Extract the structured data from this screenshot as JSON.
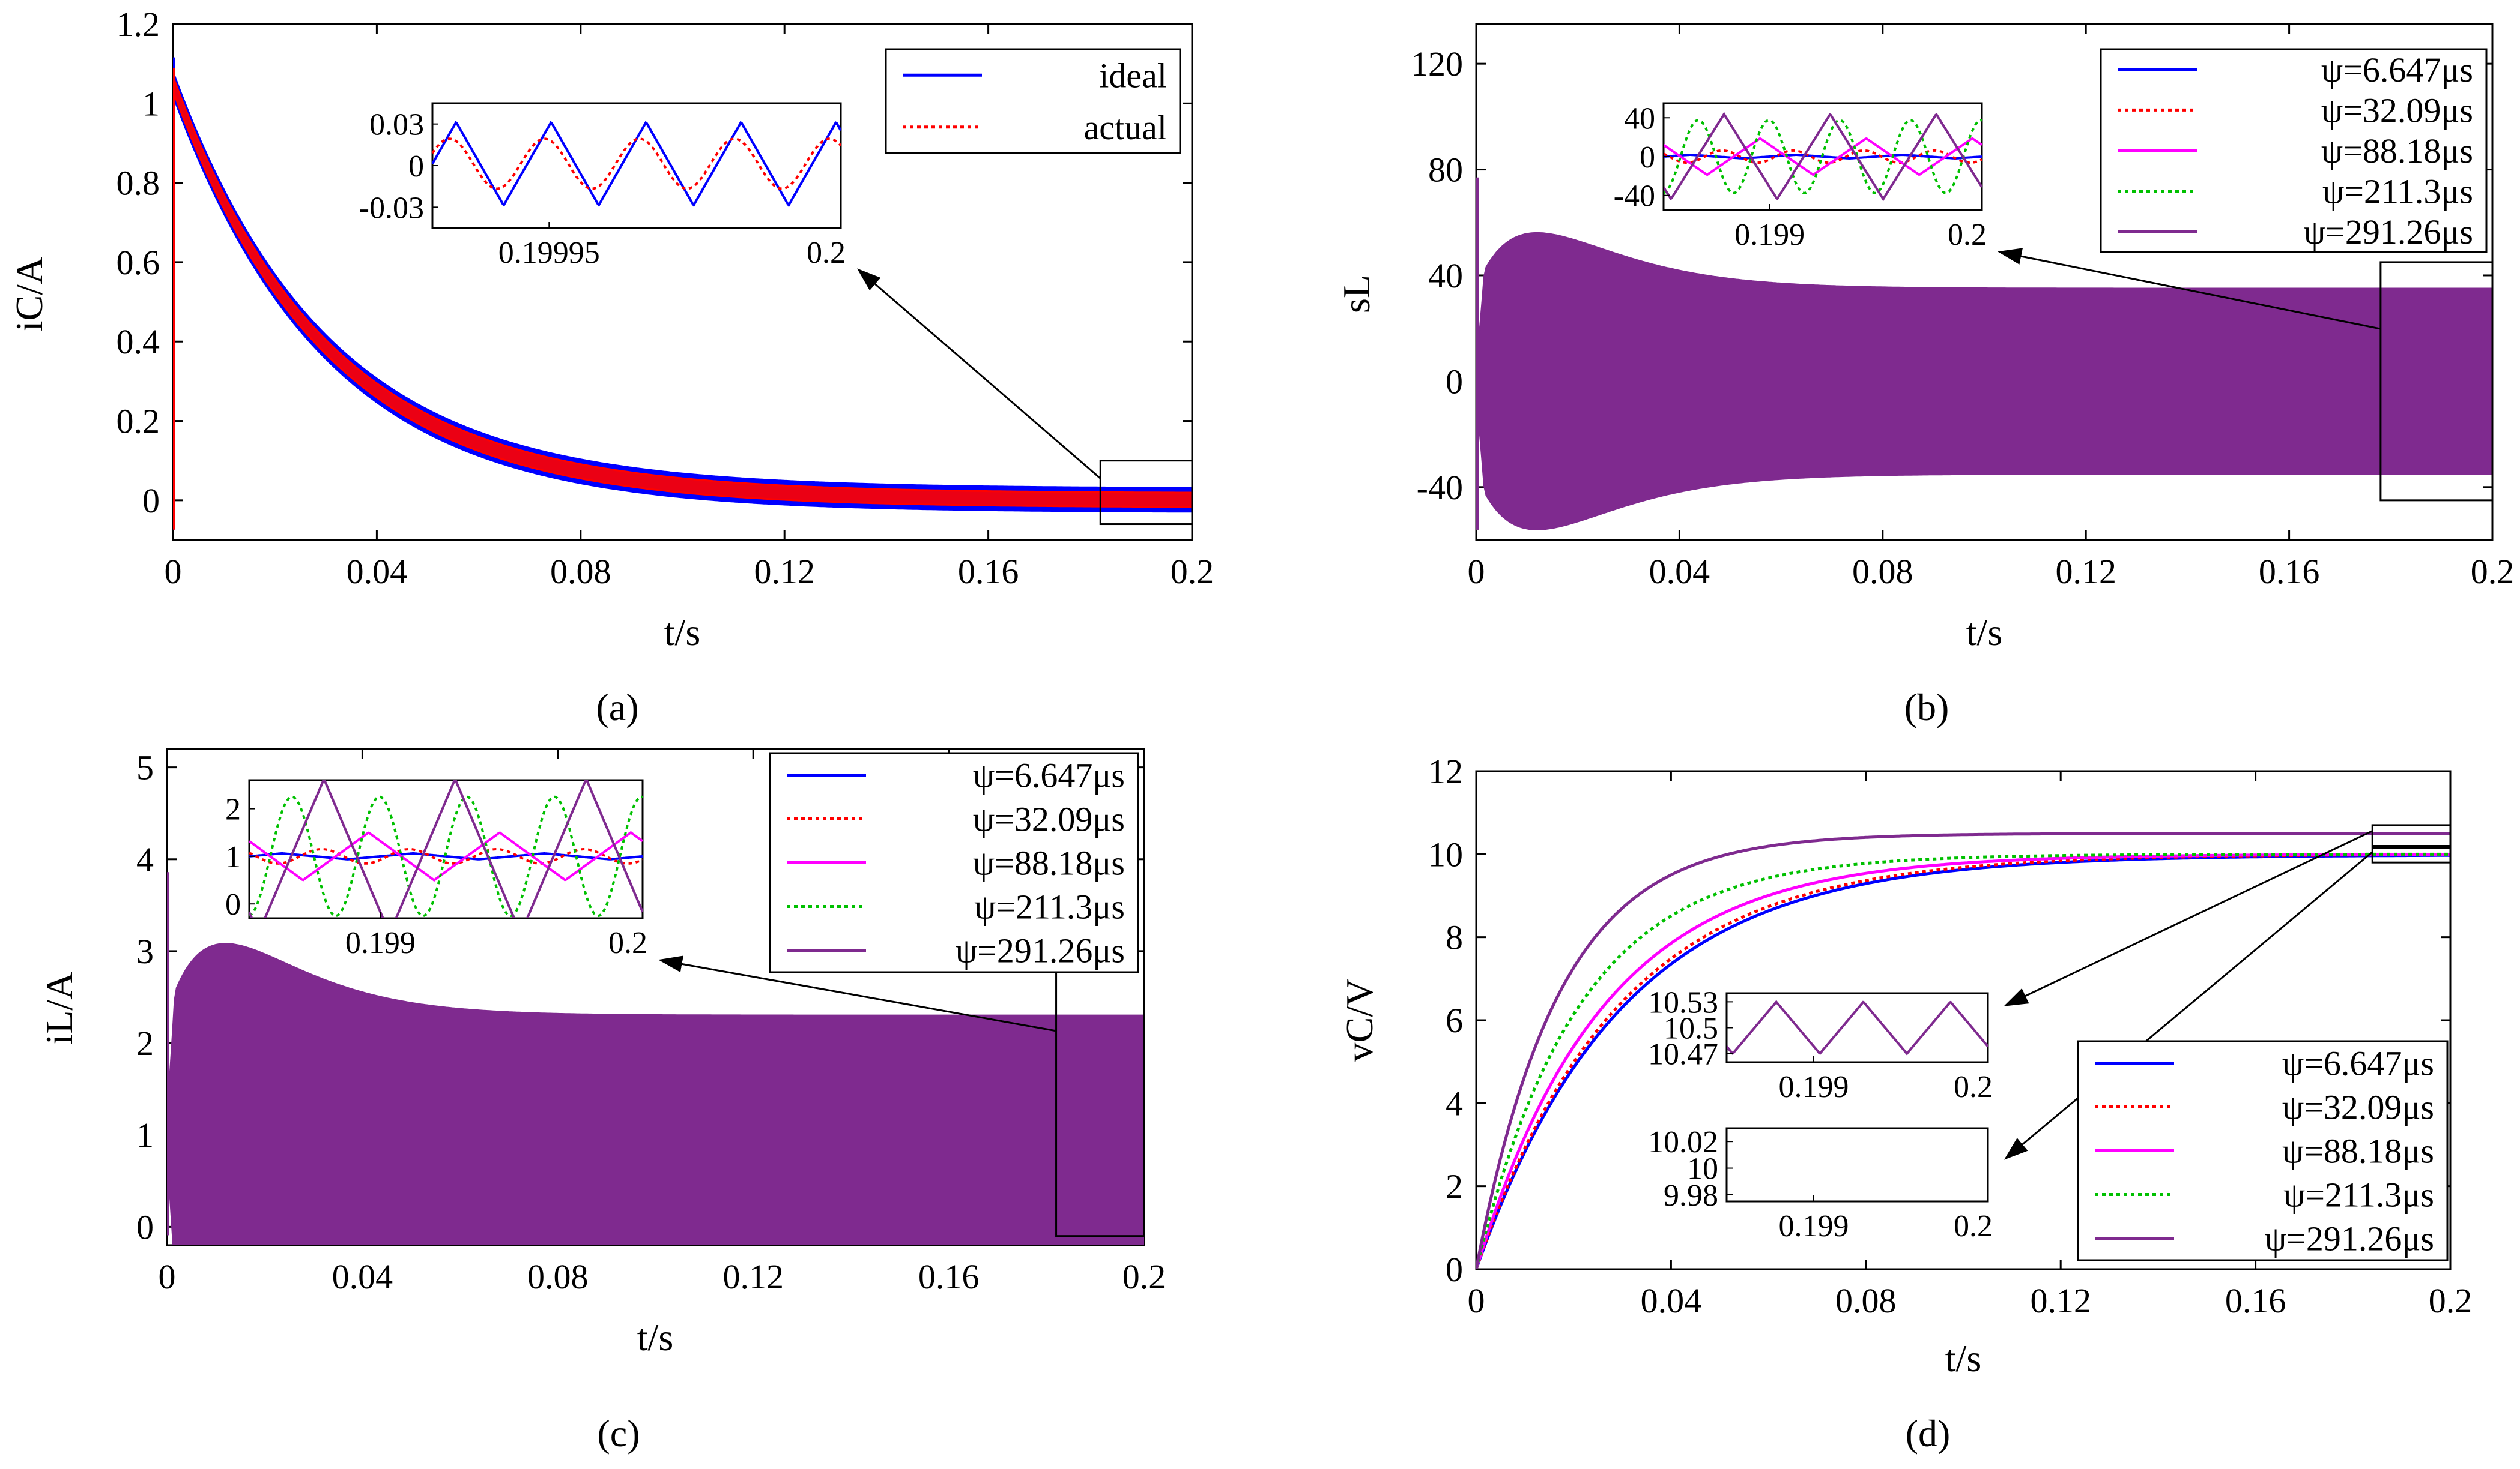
{
  "chart_data": [
    {
      "id": "a",
      "type": "line",
      "caption": "(a)",
      "xlabel": "t/s",
      "ylabel": "iC/A",
      "xlim": [
        0,
        0.2
      ],
      "ylim": [
        -0.1,
        1.2
      ],
      "xticks": [
        0,
        0.04,
        0.08,
        0.12,
        0.16,
        0.2
      ],
      "xtick_labels": [
        "0",
        "0.04",
        "0.08",
        "0.12",
        "0.16",
        "0.2"
      ],
      "yticks": [
        0,
        0.2,
        0.4,
        0.6,
        0.8,
        1,
        1.2
      ],
      "ytick_labels": [
        "0",
        "0.2",
        "0.4",
        "0.6",
        "0.8",
        "1",
        "1.2"
      ],
      "legend_position": "top-right",
      "series": [
        {
          "name": "ideal",
          "color": "#0000ff",
          "style": "solid",
          "model": "decay",
          "start": 1.05,
          "final": 0.0,
          "tau": 0.03,
          "ripple": 0.03,
          "ripple_shape": "triangle"
        },
        {
          "name": "actual",
          "color": "#ff0000",
          "style": "dotted",
          "model": "decay",
          "start": 1.05,
          "final": 0.0,
          "tau": 0.03,
          "ripple": 0.018,
          "ripple_shape": "sine"
        }
      ],
      "inset": {
        "xlim": [
          0.19993,
          0.2
        ],
        "ylim": [
          -0.045,
          0.045
        ],
        "xticks": [
          0.19995,
          0.2
        ],
        "xtick_labels": [
          "0.19995",
          "0.2"
        ],
        "yticks": [
          0.03,
          0,
          -0.03
        ],
        "ytick_labels": [
          "0.03",
          "0",
          "-0.03"
        ],
        "zoom_xlim": [
          0.182,
          0.2
        ],
        "zoom_ylim": [
          -0.06,
          0.1
        ]
      }
    },
    {
      "id": "b",
      "type": "line",
      "caption": "(b)",
      "xlabel": "t/s",
      "ylabel": "sL",
      "xlim": [
        0,
        0.2
      ],
      "ylim": [
        -60,
        135
      ],
      "xticks": [
        0,
        0.04,
        0.08,
        0.12,
        0.16,
        0.2
      ],
      "xtick_labels": [
        "0",
        "0.04",
        "0.08",
        "0.12",
        "0.16",
        "0.2"
      ],
      "yticks": [
        -40,
        0,
        40,
        80,
        120
      ],
      "ytick_labels": [
        "-40",
        "0",
        "40",
        "80",
        "120"
      ],
      "legend_position": "top-right",
      "series": [
        {
          "name": "ψ=6.647μs",
          "color": "#0000ff",
          "style": "solid",
          "model": "band",
          "center": 0,
          "ripple": 1.5
        },
        {
          "name": "ψ=32.09μs",
          "color": "#ff0000",
          "style": "dotted",
          "model": "band",
          "center": 0,
          "ripple": 5
        },
        {
          "name": "ψ=88.18μs",
          "color": "#ff00ff",
          "style": "solid",
          "model": "band",
          "center": 0,
          "ripple": 15
        },
        {
          "name": "ψ=211.3μs",
          "color": "#00c000",
          "style": "dotted",
          "model": "band",
          "center": 0,
          "ripple": 30
        },
        {
          "name": "ψ=291.26μs",
          "color": "#7f2a8f",
          "style": "solid",
          "model": "band",
          "center": 0,
          "ripple": 35
        }
      ],
      "inset": {
        "xlim": [
          0.1985,
          0.2
        ],
        "ylim": [
          -55,
          55
        ],
        "xticks": [
          0.199,
          0.2
        ],
        "xtick_labels": [
          "0.199",
          "0.2"
        ],
        "yticks": [
          40,
          0,
          -40
        ],
        "ytick_labels": [
          "40",
          "0",
          "-40"
        ],
        "zoom_xlim": [
          0.178,
          0.2
        ],
        "zoom_ylim": [
          -45,
          45
        ]
      }
    },
    {
      "id": "c",
      "type": "line",
      "caption": "(c)",
      "xlabel": "t/s",
      "ylabel": "iL/A",
      "xlim": [
        0,
        0.2
      ],
      "ylim": [
        -0.2,
        5.2
      ],
      "xticks": [
        0,
        0.04,
        0.08,
        0.12,
        0.16,
        0.2
      ],
      "xtick_labels": [
        "0",
        "0.04",
        "0.08",
        "0.12",
        "0.16",
        "0.2"
      ],
      "yticks": [
        0,
        1,
        2,
        3,
        4,
        5
      ],
      "ytick_labels": [
        "0",
        "1",
        "2",
        "3",
        "4",
        "5"
      ],
      "legend_position": "top-right",
      "series": [
        {
          "name": "ψ=6.647μs",
          "color": "#0000ff",
          "style": "solid",
          "model": "band",
          "center": 1,
          "ripple": 0.05
        },
        {
          "name": "ψ=32.09μs",
          "color": "#ff0000",
          "style": "dotted",
          "model": "band",
          "center": 1,
          "ripple": 0.12
        },
        {
          "name": "ψ=88.18μs",
          "color": "#ff00ff",
          "style": "solid",
          "model": "band",
          "center": 1,
          "ripple": 0.4
        },
        {
          "name": "ψ=211.3μs",
          "color": "#00c000",
          "style": "dotted",
          "model": "band",
          "center": 1,
          "ripple": 1.0
        },
        {
          "name": "ψ=291.26μs",
          "color": "#7f2a8f",
          "style": "solid",
          "model": "band",
          "center": 1,
          "ripple": 1.3
        }
      ],
      "inset": {
        "xlim": [
          0.1985,
          0.2
        ],
        "ylim": [
          -0.3,
          2.6
        ],
        "xticks": [
          0.199,
          0.2
        ],
        "xtick_labels": [
          "0.199",
          "0.2"
        ],
        "yticks": [
          2,
          1,
          0
        ],
        "ytick_labels": [
          "2",
          "1",
          "0"
        ],
        "zoom_xlim": [
          0.182,
          0.2
        ],
        "zoom_ylim": [
          -0.1,
          3.0
        ]
      }
    },
    {
      "id": "d",
      "type": "line",
      "caption": "(d)",
      "xlabel": "t/s",
      "ylabel": "vC/V",
      "xlim": [
        0,
        0.2
      ],
      "ylim": [
        0,
        12
      ],
      "xticks": [
        0,
        0.04,
        0.08,
        0.12,
        0.16,
        0.2
      ],
      "xtick_labels": [
        "0",
        "0.04",
        "0.08",
        "0.12",
        "0.16",
        "0.2"
      ],
      "yticks": [
        0,
        2,
        4,
        6,
        8,
        10,
        12
      ],
      "ytick_labels": [
        "0",
        "2",
        "4",
        "6",
        "8",
        "10",
        "12"
      ],
      "legend_position": "bottom-right",
      "series": [
        {
          "name": "ψ=6.647μs",
          "color": "#0000ff",
          "style": "solid",
          "model": "rise",
          "final": 9.985,
          "tau": 0.03,
          "ripple": 0.0
        },
        {
          "name": "ψ=32.09μs",
          "color": "#ff0000",
          "style": "dotted",
          "model": "rise",
          "final": 10.0,
          "tau": 0.029,
          "ripple": 0.002
        },
        {
          "name": "ψ=88.18μs",
          "color": "#ff00ff",
          "style": "solid",
          "model": "rise",
          "final": 10.0,
          "tau": 0.026,
          "ripple": 0.003
        },
        {
          "name": "ψ=211.3μs",
          "color": "#00c000",
          "style": "dotted",
          "model": "rise",
          "final": 10.0,
          "tau": 0.021,
          "ripple": 0.02
        },
        {
          "name": "ψ=291.26μs",
          "color": "#7f2a8f",
          "style": "solid",
          "model": "rise",
          "final": 10.5,
          "tau": 0.017,
          "ripple": 0.03
        }
      ],
      "insets": [
        {
          "xlim": [
            0.1985,
            0.2
          ],
          "ylim": [
            10.46,
            10.54
          ],
          "xticks": [
            0.199,
            0.2
          ],
          "xtick_labels": [
            "0.199",
            "0.2"
          ],
          "yticks": [
            10.53,
            10.5,
            10.47
          ],
          "ytick_labels": [
            "10.53",
            "10.5",
            "10.47"
          ],
          "series_indices": [
            4
          ],
          "zoom_xlim": [
            0.184,
            0.2
          ],
          "zoom_ylim": [
            10.2,
            10.7
          ]
        },
        {
          "xlim": [
            0.1985,
            0.2
          ],
          "ylim": [
            9.975,
            10.03
          ],
          "xticks": [
            0.199,
            0.2
          ],
          "xtick_labels": [
            "0.199",
            "0.2"
          ],
          "yticks": [
            10.02,
            10,
            9.98
          ],
          "ytick_labels": [
            "10.02",
            "10",
            "9.98"
          ],
          "series_indices": [
            0,
            1,
            2,
            3
          ],
          "zoom_xlim": [
            0.184,
            0.2
          ],
          "zoom_ylim": [
            9.8,
            10.15
          ]
        }
      ]
    }
  ]
}
